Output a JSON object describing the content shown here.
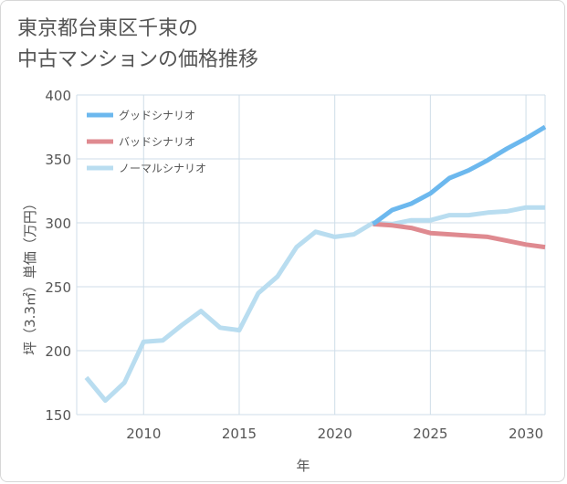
{
  "title_lines": [
    "東京都台東区千束の",
    "中古マンションの価格推移"
  ],
  "chart_data": {
    "type": "line",
    "title": "東京都台東区千束の中古マンションの価格推移",
    "xlabel": "年",
    "ylabel": "坪（3.3㎡）単価（万円）",
    "xlim": [
      2006.5,
      2031
    ],
    "ylim": [
      150,
      400
    ],
    "xticks": [
      2010,
      2015,
      2020,
      2025,
      2030
    ],
    "yticks": [
      150,
      200,
      250,
      300,
      350,
      400
    ],
    "grid": true,
    "legend_position": "top-left",
    "series": [
      {
        "name": "グッドシナリオ",
        "color": "#6cb8ee",
        "x": [
          2022,
          2023,
          2024,
          2025,
          2026,
          2027,
          2028,
          2029,
          2030,
          2031
        ],
        "values": [
          299,
          310,
          315,
          323,
          335,
          341,
          349,
          358,
          366,
          375
        ]
      },
      {
        "name": "バッドシナリオ",
        "color": "#df8a90",
        "x": [
          2022,
          2023,
          2024,
          2025,
          2026,
          2027,
          2028,
          2029,
          2030,
          2031
        ],
        "values": [
          299,
          298,
          296,
          292,
          291,
          290,
          289,
          286,
          283,
          281
        ]
      },
      {
        "name": "ノーマルシナリオ",
        "color": "#b9ddf0",
        "x": [
          2007,
          2008,
          2009,
          2010,
          2011,
          2012,
          2013,
          2014,
          2015,
          2016,
          2017,
          2018,
          2019,
          2020,
          2021,
          2022,
          2023,
          2024,
          2025,
          2026,
          2027,
          2028,
          2029,
          2030,
          2031
        ],
        "values": [
          179,
          161,
          175,
          207,
          208,
          220,
          231,
          218,
          216,
          245,
          258,
          281,
          293,
          289,
          291,
          300,
          299,
          302,
          302,
          306,
          306,
          308,
          309,
          312,
          312
        ]
      }
    ]
  }
}
